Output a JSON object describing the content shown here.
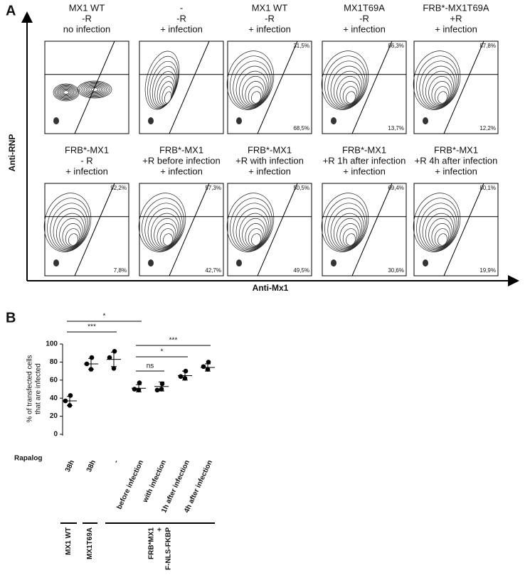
{
  "panel_a": {
    "label": "A",
    "y_axis_label": "Anti-RNP",
    "x_axis_label": "Anti-Mx1",
    "plots": [
      {
        "title": [
          "MX1 WT",
          "-R",
          "no infection"
        ]
      },
      {
        "title": [
          "-",
          "-R",
          "+ infection"
        ]
      },
      {
        "title": [
          "MX1 WT",
          "-R",
          "+ infection"
        ],
        "upper": "31,5%",
        "lower": "68,5%"
      },
      {
        "title": [
          "MX1T69A",
          "-R",
          "+ infection"
        ],
        "upper": "86,3%",
        "lower": "13,7%"
      },
      {
        "title": [
          "FRB*-MX1T69A",
          "+R",
          "+ infection"
        ],
        "upper": "87,8%",
        "lower": "12,2%"
      },
      {
        "title": [
          "FRB*-MX1",
          "- R",
          "+ infection"
        ],
        "upper": "92,2%",
        "lower": "7,8%"
      },
      {
        "title": [
          "FRB*-MX1",
          "+R before infection",
          "+ infection"
        ],
        "upper": "57,3%",
        "lower": "42,7%"
      },
      {
        "title": [
          "FRB*-MX1",
          "+R with infection",
          "+ infection"
        ],
        "upper": "50,5%",
        "lower": "49,5%"
      },
      {
        "title": [
          "FRB*-MX1",
          "+R 1h after infection",
          "+ infection"
        ],
        "upper": "69,4%",
        "lower": "30,6%"
      },
      {
        "title": [
          "FRB*-MX1",
          "+R 4h after infection",
          "+ infection"
        ],
        "upper": "80,1%",
        "lower": "19,9%"
      }
    ]
  },
  "panel_b_label": "B",
  "chart_data": {
    "type": "dot",
    "ylabel": [
      "% of transfected cells",
      "that are infected"
    ],
    "category_title": "Rapalog",
    "categories": [
      "38h",
      "38h",
      "-",
      "before infection",
      "with infection",
      "1h after infection",
      "4h after infection"
    ],
    "points": [
      [
        43,
        37,
        32
      ],
      [
        85,
        78,
        72
      ],
      [
        92,
        85,
        73
      ],
      [
        57,
        50,
        49
      ],
      [
        56,
        49,
        50
      ],
      [
        70,
        64,
        62
      ],
      [
        80,
        75,
        72
      ]
    ],
    "means": [
      37,
      78,
      83,
      51,
      53,
      65,
      74
    ],
    "errors": [
      5,
      6,
      8,
      4,
      5,
      5,
      4
    ],
    "color": "#000000",
    "ylim": [
      0,
      100
    ],
    "yticks": [
      0,
      20,
      40,
      60,
      80,
      100
    ],
    "significance": [
      "*",
      "***",
      "***",
      "*",
      "ns"
    ],
    "groups": [
      [
        "MX1 WT"
      ],
      [
        "MX1T69A"
      ],
      [
        "FRB*MX1",
        "+",
        "F-NLS-FKBP"
      ]
    ]
  }
}
